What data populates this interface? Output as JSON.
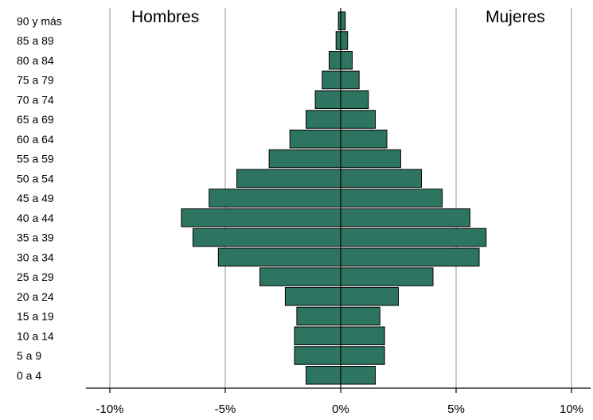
{
  "chart_data": {
    "type": "bar",
    "orientation": "horizontal",
    "style": "population-pyramid",
    "categories": [
      "90 y más",
      "85 a 89",
      "80 a 84",
      "75 a 79",
      "70 a 74",
      "65 a 69",
      "60 a 64",
      "55 a 59",
      "50 a 54",
      "45 a 49",
      "40 a 44",
      "35 a 39",
      "30 a 34",
      "25 a 29",
      "20 a 24",
      "15 a 19",
      "10 a 14",
      "5 a 9",
      "0 a 4"
    ],
    "series": [
      {
        "name": "Hombres",
        "side": "left",
        "values": [
          0.1,
          0.2,
          0.5,
          0.8,
          1.1,
          1.5,
          2.2,
          3.1,
          4.5,
          5.7,
          6.9,
          6.4,
          5.3,
          3.5,
          2.4,
          1.9,
          2.0,
          2.0,
          1.5
        ]
      },
      {
        "name": "Mujeres",
        "side": "right",
        "values": [
          0.2,
          0.3,
          0.5,
          0.8,
          1.2,
          1.5,
          2.0,
          2.6,
          3.5,
          4.4,
          5.6,
          6.3,
          6.0,
          4.0,
          2.5,
          1.7,
          1.9,
          1.9,
          1.5
        ]
      }
    ],
    "xlim": [
      -10,
      10
    ],
    "ticks": [
      -10,
      -5,
      0,
      5,
      10
    ],
    "tick_labels": [
      "-10%",
      "-5%",
      "0%",
      "5%",
      "10%"
    ],
    "grid": true,
    "colors": {
      "bar_fill": "#2e7561",
      "bar_stroke": "#000000",
      "grid": "#c8c8c8",
      "axis": "#000000"
    }
  }
}
